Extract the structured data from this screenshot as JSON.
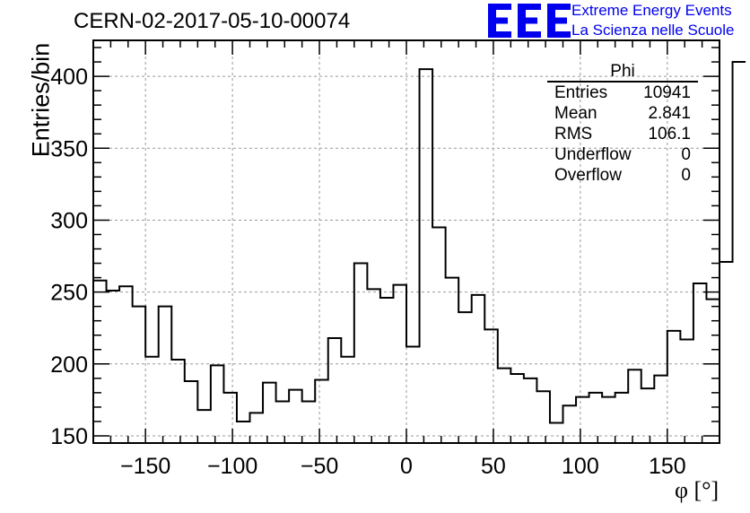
{
  "header": {
    "title": "CERN-02-2017-05-10-00074",
    "logo_line1": "Extreme Energy Events",
    "logo_line2": "La Scienza nelle Scuole"
  },
  "colors": {
    "logo": "#0000ee",
    "histogram": "#000000",
    "grid": "#999999"
  },
  "stats": {
    "title": "Phi",
    "rows": [
      {
        "label": "Entries",
        "value": "10941"
      },
      {
        "label": "Mean",
        "value": "2.841"
      },
      {
        "label": "RMS",
        "value": "106.1"
      },
      {
        "label": "Underflow",
        "value": "0"
      },
      {
        "label": "Overflow",
        "value": "0"
      }
    ]
  },
  "chart_data": {
    "type": "bar",
    "histogram": true,
    "xlabel": "φ [°]",
    "ylabel": "Entries/bin",
    "xlim": [
      -180,
      180
    ],
    "ylim": [
      145,
      425
    ],
    "grid": true,
    "xticks": [
      -150,
      -100,
      -50,
      0,
      50,
      100,
      150
    ],
    "yticks": [
      150,
      200,
      250,
      300,
      350,
      400
    ],
    "bin_edges_start": -180,
    "bin_width": 7.5,
    "values": [
      258,
      251,
      254,
      240,
      205,
      240,
      203,
      188,
      168,
      199,
      180,
      160,
      166,
      187,
      174,
      182,
      174,
      189,
      218,
      205,
      270,
      252,
      246,
      255,
      212,
      405,
      295,
      260,
      236,
      248,
      224,
      197,
      193,
      190,
      181,
      159,
      171,
      177,
      180,
      177,
      180,
      196,
      183,
      192,
      223,
      217,
      256,
      245,
      271,
      410
    ]
  }
}
